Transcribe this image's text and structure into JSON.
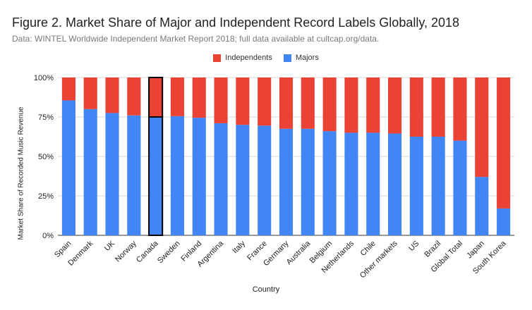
{
  "chart_data": {
    "type": "bar",
    "stacked": true,
    "title": "Figure 2. Market Share of Major and Independent Record Labels Globally, 2018",
    "subtitle": "Data: WINTEL Worldwide Independent Market Report 2018; full data available at cultcap.org/data.",
    "xlabel": "Country",
    "ylabel": "Market Share of Recorded Music Revenue",
    "ylim": [
      0,
      100
    ],
    "yticks": [
      "0%",
      "25%",
      "50%",
      "75%",
      "100%"
    ],
    "legend_position": "top-center",
    "grid": true,
    "highlight_category": "Canada",
    "categories": [
      "Spain",
      "Denmark",
      "UK",
      "Norway",
      "Canada",
      "Sweden",
      "Finland",
      "Argentina",
      "Italy",
      "France",
      "Germany",
      "Australia",
      "Belgium",
      "Netherlands",
      "Chile",
      "Other markets",
      "US",
      "Brazil",
      "Global Total",
      "Japan",
      "South Korea"
    ],
    "series": [
      {
        "name": "Majors",
        "color": "#4285f4",
        "values": [
          85.5,
          80,
          77.5,
          76,
          75,
          75.5,
          74.5,
          71,
          70,
          69.5,
          67.5,
          67.5,
          66,
          65,
          65,
          64.5,
          62.5,
          62.5,
          60,
          37,
          17
        ]
      },
      {
        "name": "Independents",
        "color": "#ea4335",
        "values": [
          14.5,
          20,
          22.5,
          24,
          25,
          24.5,
          25.5,
          29,
          30,
          30.5,
          32.5,
          32.5,
          34,
          35,
          35,
          35.5,
          37.5,
          37.5,
          40,
          63,
          83
        ]
      }
    ]
  }
}
